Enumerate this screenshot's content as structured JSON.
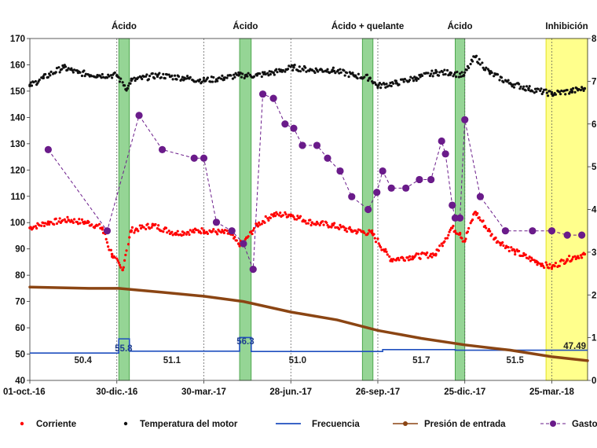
{
  "chart_data": {
    "type": "line",
    "y_left_ticks": [
      "40",
      "50",
      "60",
      "70",
      "80",
      "90",
      "100",
      "110",
      "120",
      "130",
      "140",
      "150",
      "160",
      "170"
    ],
    "y_left_range": [
      40,
      170
    ],
    "y_right_ticks": [
      "0",
      "1",
      "2",
      "3",
      "4",
      "5",
      "6",
      "7",
      "8"
    ],
    "y_right_range": [
      0,
      8
    ],
    "x_range": [
      "2016-10-01",
      "2018-05-01"
    ],
    "x_ticks": [
      {
        "date": "2016-10-01",
        "label": "01-oct.-16"
      },
      {
        "date": "2016-12-30",
        "label": "30-dic.-16"
      },
      {
        "date": "2017-03-30",
        "label": "30-mar.-17"
      },
      {
        "date": "2017-06-28",
        "label": "28-jun.-17"
      },
      {
        "date": "2017-09-26",
        "label": "26-sep.-17"
      },
      {
        "date": "2017-12-25",
        "label": "25-dic.-17"
      },
      {
        "date": "2018-03-25",
        "label": "25-mar.-18"
      }
    ],
    "x_gridlines": [
      "2016-12-30",
      "2017-03-30",
      "2017-06-28",
      "2017-09-26",
      "2017-12-25",
      "2018-03-25"
    ],
    "treatments": [
      {
        "label": "Ácido",
        "start": "2017-01-01",
        "end": "2017-01-12",
        "color": "#5cbf5c"
      },
      {
        "label": "Ácido",
        "start": "2017-05-06",
        "end": "2017-05-18",
        "color": "#5cbf5c"
      },
      {
        "label": "Ácido + quelante",
        "start": "2017-09-10",
        "end": "2017-09-21",
        "color": "#5cbf5c"
      },
      {
        "label": "Ácido",
        "start": "2017-12-15",
        "end": "2017-12-25",
        "color": "#5cbf5c"
      },
      {
        "label": "Inhibición",
        "start": "2018-03-19",
        "end": "2018-05-01",
        "color": "#ffff66"
      }
    ],
    "frequency_labels": [
      "50.4",
      "55.8",
      "51.1",
      "56.3",
      "51.0",
      "51.7",
      "51.5",
      "47.49"
    ],
    "series": [
      {
        "name": "Corriente",
        "axis": "left",
        "color": "#ff0000",
        "style": "dots",
        "x": [
          "2016-10-01",
          "2016-10-20",
          "2016-11-10",
          "2016-11-30",
          "2016-12-15",
          "2016-12-25",
          "2017-01-05",
          "2017-01-14",
          "2017-02-05",
          "2017-03-01",
          "2017-03-30",
          "2017-04-25",
          "2017-05-05",
          "2017-05-10",
          "2017-05-24",
          "2017-06-10",
          "2017-06-28",
          "2017-07-20",
          "2017-08-10",
          "2017-08-30",
          "2017-09-20",
          "2017-10-10",
          "2017-11-01",
          "2017-11-25",
          "2017-12-12",
          "2017-12-20",
          "2017-12-25",
          "2018-01-05",
          "2018-01-25",
          "2018-02-15",
          "2018-03-10",
          "2018-03-25",
          "2018-04-10",
          "2018-04-28"
        ],
        "y": [
          98,
          100,
          101,
          100,
          98,
          88,
          82,
          97,
          99,
          96,
          97,
          96,
          92,
          92,
          99,
          103,
          103,
          100,
          99,
          97,
          96,
          86,
          87,
          88,
          98,
          96,
          93,
          104,
          94,
          89,
          85,
          83,
          86,
          88
        ]
      },
      {
        "name": "Temperatura del motor",
        "axis": "left",
        "color": "#111111",
        "style": "dots",
        "x": [
          "2016-10-01",
          "2016-10-15",
          "2016-11-05",
          "2016-11-20",
          "2016-12-10",
          "2016-12-30",
          "2017-01-10",
          "2017-01-14",
          "2017-02-10",
          "2017-03-10",
          "2017-03-30",
          "2017-04-20",
          "2017-05-05",
          "2017-05-12",
          "2017-05-24",
          "2017-06-10",
          "2017-07-01",
          "2017-07-20",
          "2017-08-10",
          "2017-09-01",
          "2017-09-18",
          "2017-09-26",
          "2017-10-15",
          "2017-11-05",
          "2017-11-25",
          "2017-12-10",
          "2017-12-24",
          "2018-01-05",
          "2018-01-20",
          "2018-02-10",
          "2018-03-01",
          "2018-03-25",
          "2018-04-15",
          "2018-04-28"
        ],
        "y": [
          152,
          155,
          159,
          157,
          156,
          156,
          151,
          154,
          156,
          155,
          154,
          155,
          156,
          156,
          156,
          157,
          159,
          158,
          158,
          156,
          155,
          152,
          153,
          155,
          157,
          157,
          156,
          163,
          157,
          153,
          151,
          149,
          150,
          151
        ]
      },
      {
        "name": "Frecuencia",
        "axis": "left",
        "color": "#1f4fbf",
        "style": "step",
        "x": [
          "2016-10-01",
          "2017-01-01",
          "2017-01-12",
          "2017-05-06",
          "2017-05-18",
          "2017-10-01",
          "2017-12-15",
          "2018-05-01"
        ],
        "y": [
          50.4,
          55.8,
          51.1,
          56.3,
          51.0,
          51.7,
          51.5,
          51.5
        ]
      },
      {
        "name": "Presión de entrada",
        "axis": "left",
        "color": "#8b4513",
        "style": "line",
        "x": [
          "2016-10-01",
          "2016-12-01",
          "2017-01-01",
          "2017-02-15",
          "2017-03-30",
          "2017-05-10",
          "2017-06-28",
          "2017-08-15",
          "2017-09-26",
          "2017-11-10",
          "2017-12-25",
          "2018-02-10",
          "2018-03-25",
          "2018-05-01"
        ],
        "y": [
          75.5,
          75,
          75,
          73.5,
          72,
          70,
          66,
          63,
          59,
          56,
          53.5,
          51.5,
          49,
          47.5
        ]
      },
      {
        "name": "Gasto",
        "axis": "right",
        "color": "#6a1b8a",
        "style": "dashed-markers",
        "x": [
          "2016-10-20",
          "2016-12-20",
          "2017-01-22",
          "2017-02-15",
          "2017-03-20",
          "2017-03-30",
          "2017-04-12",
          "2017-04-28",
          "2017-05-10",
          "2017-05-20",
          "2017-05-30",
          "2017-06-10",
          "2017-06-22",
          "2017-07-01",
          "2017-07-10",
          "2017-07-25",
          "2017-08-05",
          "2017-08-18",
          "2017-08-30",
          "2017-09-16",
          "2017-09-25",
          "2017-10-01",
          "2017-10-10",
          "2017-10-25",
          "2017-11-08",
          "2017-11-20",
          "2017-12-01",
          "2017-12-05",
          "2017-12-12",
          "2017-12-15",
          "2017-12-20",
          "2017-12-25",
          "2018-01-10",
          "2018-02-05",
          "2018-03-05",
          "2018-03-25",
          "2018-04-10",
          "2018-04-25"
        ],
        "y": [
          5.4,
          3.5,
          6.2,
          5.4,
          5.2,
          5.2,
          3.7,
          3.5,
          3.2,
          2.6,
          6.7,
          6.6,
          6.0,
          5.9,
          5.5,
          5.5,
          5.2,
          4.9,
          4.3,
          4.0,
          4.4,
          4.9,
          4.5,
          4.5,
          4.7,
          4.7,
          5.6,
          5.3,
          4.1,
          3.8,
          3.8,
          6.1,
          4.3,
          3.5,
          3.5,
          3.5,
          3.4,
          3.4
        ]
      }
    ]
  }
}
